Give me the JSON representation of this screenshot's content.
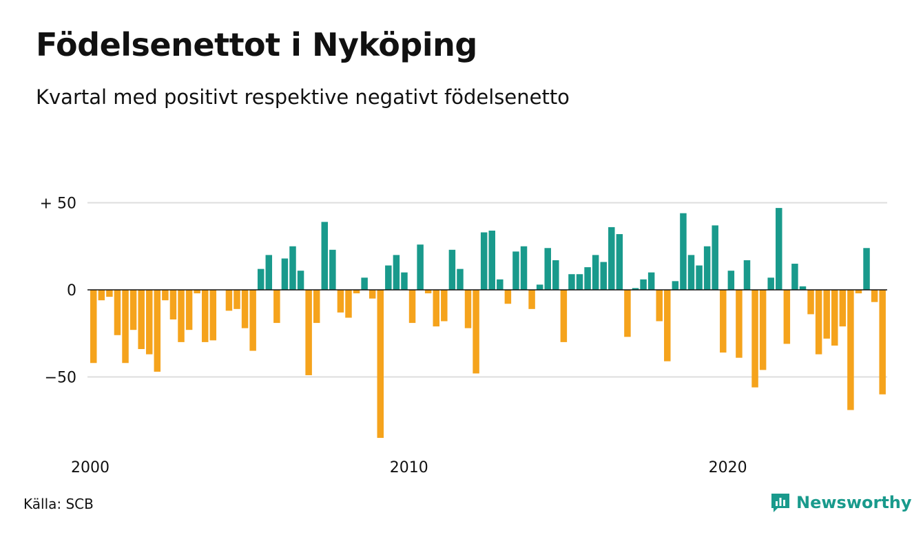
{
  "title": "Födelsenettot i Nyköping",
  "subtitle": "Kvartal med positivt respektive negativt födelsenetto",
  "source": "Källa: SCB",
  "brand": "Newsworthy",
  "colors": {
    "positive": "#199a8c",
    "negative": "#f5a31c",
    "grid": "#dddddd",
    "axis": "#111111",
    "brand": "#199a8c"
  },
  "chart_data": {
    "type": "bar",
    "x_ticks": [
      {
        "label": "2000",
        "index": 0
      },
      {
        "label": "2010",
        "index": 40
      },
      {
        "label": "2020",
        "index": 80
      }
    ],
    "y_ticks": [
      {
        "label": "+ 50",
        "value": 50
      },
      {
        "label": "0",
        "value": 0
      },
      {
        "label": "−50",
        "value": -50
      }
    ],
    "ylim": [
      -87,
      55
    ],
    "grid": true,
    "values": [
      -42,
      -6,
      -4,
      -26,
      -42,
      -23,
      -34,
      -37,
      -47,
      -6,
      -17,
      -30,
      -23,
      -2,
      -30,
      -29,
      0,
      -12,
      -11,
      -22,
      -35,
      12,
      20,
      -19,
      18,
      25,
      11,
      -49,
      -19,
      39,
      23,
      -13,
      -16,
      -2,
      7,
      -5,
      -85,
      14,
      20,
      10,
      -19,
      26,
      -2,
      -21,
      -18,
      23,
      12,
      -22,
      -48,
      33,
      34,
      6,
      -8,
      22,
      25,
      -11,
      3,
      24,
      17,
      -30,
      9,
      9,
      13,
      20,
      16,
      36,
      32,
      -27,
      1,
      6,
      10,
      -18,
      -41,
      5,
      44,
      20,
      14,
      25,
      37,
      -36,
      11,
      -39,
      17,
      -56,
      -46,
      7,
      47,
      -31,
      15,
      2,
      -14,
      -37,
      -28,
      -32,
      -21,
      -69,
      -2,
      24,
      -7,
      -60
    ]
  }
}
